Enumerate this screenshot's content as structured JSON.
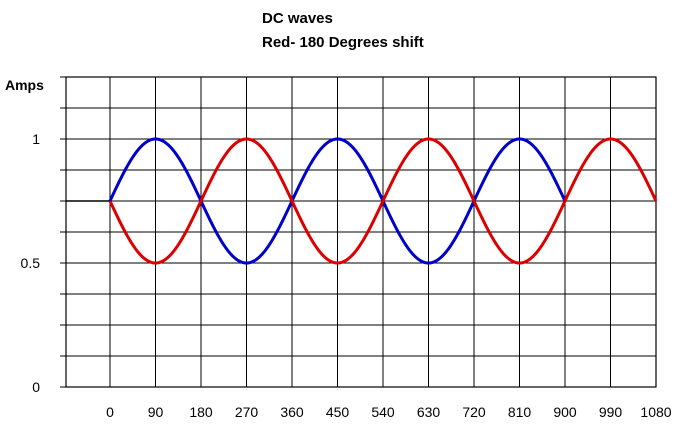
{
  "chart_data": {
    "type": "line",
    "title": "DC waves",
    "subtitle": "Red- 180 Degrees shift",
    "xlabel": "",
    "ylabel": "Amps",
    "x_ticks": [
      0,
      90,
      180,
      270,
      360,
      450,
      540,
      630,
      720,
      810,
      900,
      990,
      1080
    ],
    "y_ticks": [
      0,
      0.5,
      1
    ],
    "xlim": [
      0,
      1080
    ],
    "ylim": [
      0,
      1.25
    ],
    "grid": true,
    "series": [
      {
        "color": "#0000cc",
        "offset": 0.75,
        "amplitude": 0.25,
        "phase_deg": 0,
        "x": [
          0,
          90,
          180,
          270,
          360,
          450,
          540,
          630,
          720,
          810,
          900
        ],
        "y": [
          0.75,
          1.0,
          0.75,
          0.5,
          0.75,
          1.0,
          0.75,
          0.5,
          0.75,
          1.0,
          0.75
        ]
      },
      {
        "color": "#dd0000",
        "offset": 0.75,
        "amplitude": 0.25,
        "phase_deg": 180,
        "x": [
          0,
          90,
          180,
          270,
          360,
          450,
          540,
          630,
          720,
          810,
          900,
          990,
          1080
        ],
        "y": [
          0.75,
          0.5,
          0.75,
          1.0,
          0.75,
          0.5,
          0.75,
          1.0,
          0.75,
          0.5,
          0.75,
          1.0,
          0.75
        ]
      }
    ],
    "lead_in": {
      "x_start": -90,
      "y": 0.75,
      "color": "#000000"
    }
  }
}
